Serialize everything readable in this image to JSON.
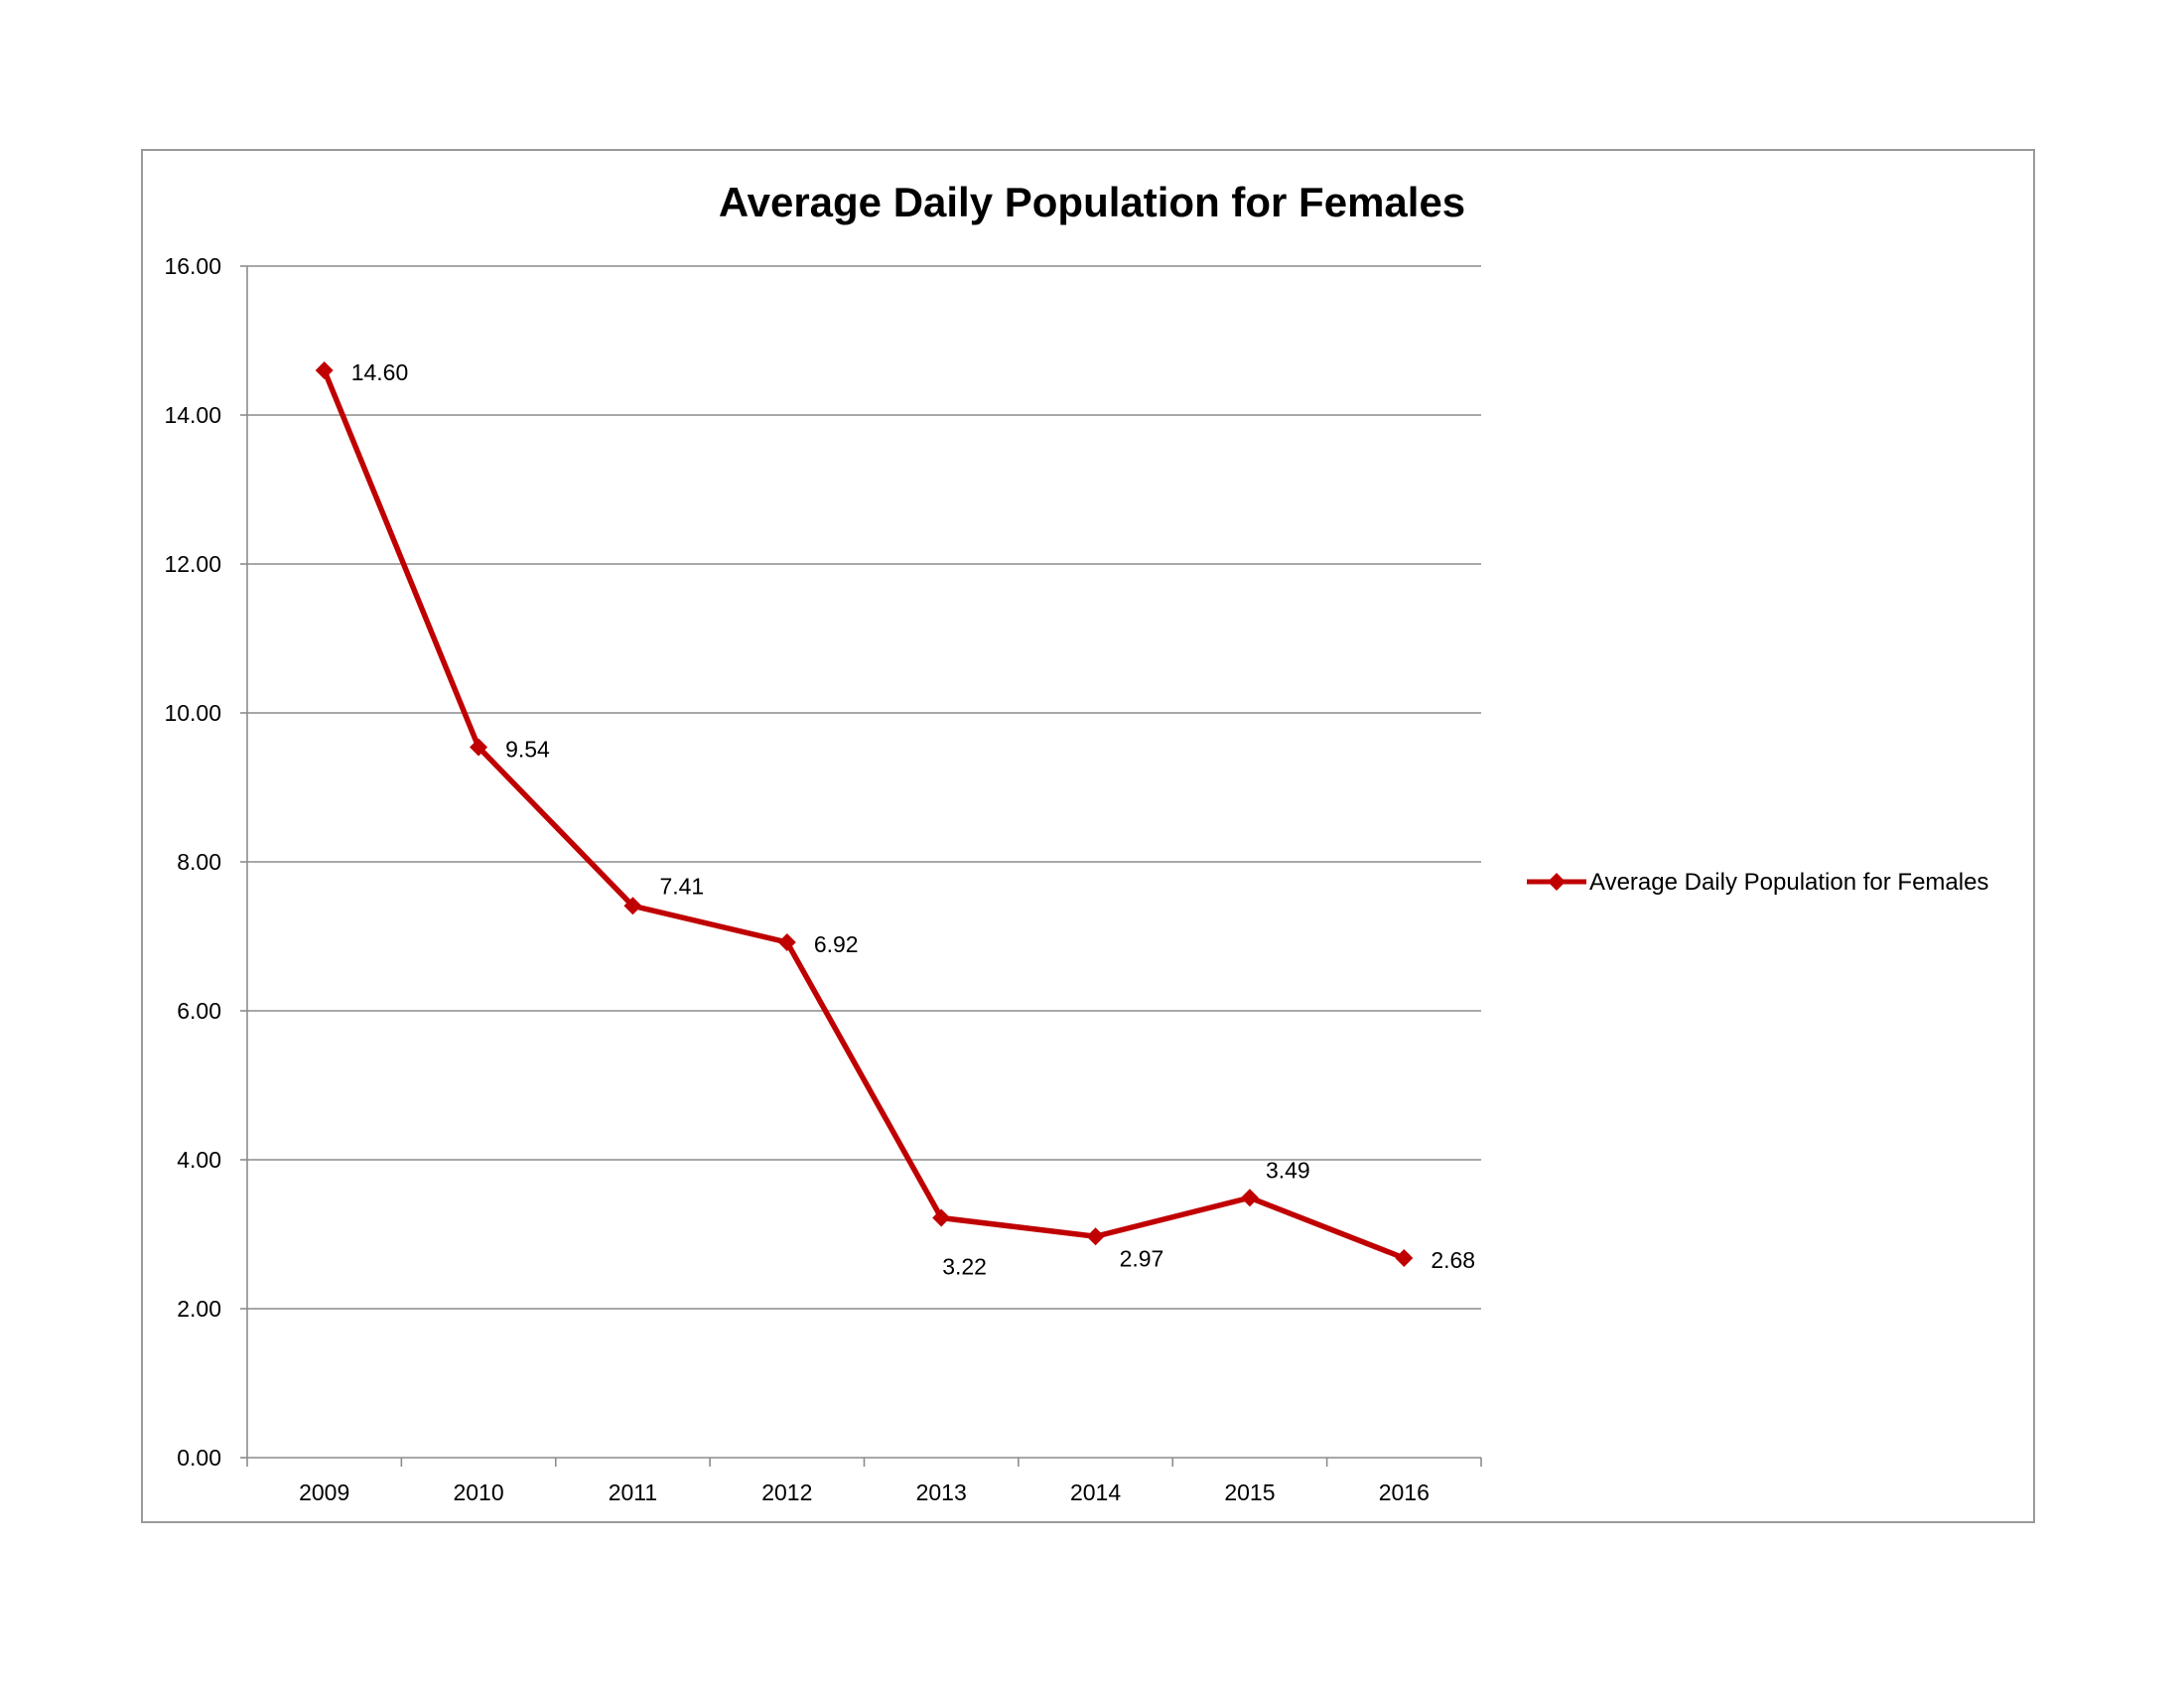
{
  "chart_data": {
    "type": "line",
    "title": "Average Daily Population for Females",
    "xlabel": "",
    "ylabel": "",
    "categories": [
      "2009",
      "2010",
      "2011",
      "2012",
      "2013",
      "2014",
      "2015",
      "2016"
    ],
    "series": [
      {
        "name": "Average Daily Population for Females",
        "values": [
          14.6,
          9.54,
          7.41,
          6.92,
          3.22,
          2.97,
          3.49,
          2.68
        ],
        "labels": [
          "14.60",
          "9.54",
          "7.41",
          "6.92",
          "3.22",
          "2.97",
          "3.49",
          "2.68"
        ],
        "color": "#c00000",
        "marker": "diamond"
      }
    ],
    "ylim": [
      0,
      16
    ],
    "yticks": [
      "0.00",
      "2.00",
      "4.00",
      "6.00",
      "8.00",
      "10.00",
      "12.00",
      "14.00",
      "16.00"
    ],
    "grid": true,
    "legend": "right",
    "colors": {
      "line": "#c00000",
      "grid": "#8c8c8c",
      "axis": "#8c8c8c",
      "frame": "#9a9a9a"
    }
  }
}
